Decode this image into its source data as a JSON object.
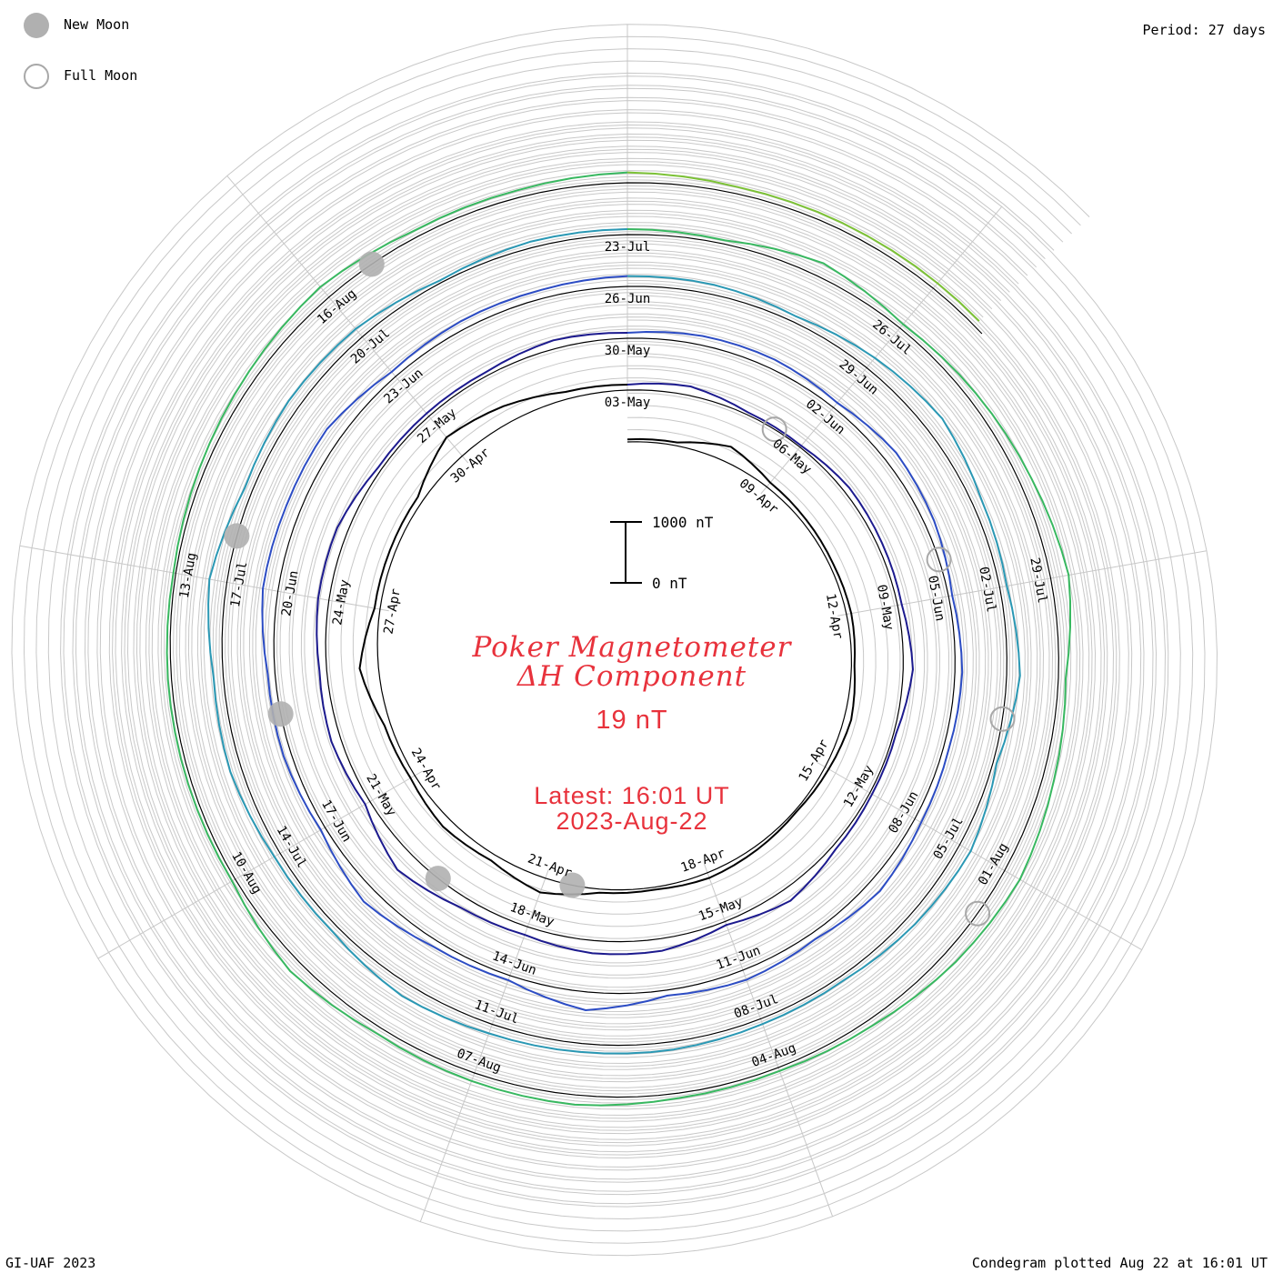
{
  "legend": {
    "new_moon_label": "New Moon",
    "full_moon_label": "Full Moon",
    "new_moon_color": "#b0b0b0",
    "full_moon_color": "#a8a8a8"
  },
  "period_label": "Period: 27 days",
  "footer_left": "GI-UAF 2023",
  "footer_right": "Condegram plotted Aug 22 at 16:01 UT",
  "title": {
    "line1": "Poker Magnetometer",
    "line2": "ΔH Component",
    "value": "19 nT",
    "latest_line1": "Latest: 16:01 UT",
    "latest_line2": "2023-Aug-22",
    "color": "#e8323c"
  },
  "chart_data": {
    "type": "line",
    "subtype": "spiral condegram",
    "period_days": 27,
    "start_date": "2023-04-06",
    "end_date": "2023-08-22",
    "scale_bar": {
      "top_label": "1000 nT",
      "bottom_label": "0 nT",
      "top_value": 1000,
      "bottom_value": 0
    },
    "grid": true,
    "date_labels": [
      "09-Apr",
      "12-Apr",
      "15-Apr",
      "18-Apr",
      "21-Apr",
      "24-Apr",
      "27-Apr",
      "30-Apr",
      "03-May",
      "06-May",
      "09-May",
      "12-May",
      "15-May",
      "18-May",
      "21-May",
      "24-May",
      "27-May",
      "30-May",
      "02-Jun",
      "05-Jun",
      "08-Jun",
      "11-Jun",
      "14-Jun",
      "17-Jun",
      "20-Jun",
      "23-Jun",
      "26-Jun",
      "29-Jun",
      "02-Jul",
      "05-Jul",
      "08-Jul",
      "11-Jul",
      "14-Jul",
      "17-Jul",
      "20-Jul",
      "23-Jul",
      "26-Jul",
      "29-Jul",
      "01-Aug",
      "04-Aug",
      "07-Aug",
      "10-Aug",
      "13-Aug",
      "16-Aug"
    ],
    "new_moon_dates": [
      "2023-04-20",
      "2023-05-19",
      "2023-06-18",
      "2023-07-17",
      "2023-08-16"
    ],
    "full_moon_dates": [
      "2023-05-05",
      "2023-06-04",
      "2023-07-03",
      "2023-08-01"
    ],
    "revolution_colors": [
      "#000000",
      "#1c1a8e",
      "#2c4cc4",
      "#2a98b4",
      "#38b860",
      "#7cc236",
      "#b8b420",
      "#c47a14",
      "#c41a12"
    ],
    "series": [
      {
        "step_days": 1,
        "values": [
          40,
          55,
          260,
          90,
          70,
          60,
          80,
          50,
          120,
          70,
          30,
          60,
          90,
          40,
          60,
          250,
          110,
          160,
          80,
          100,
          310,
          90,
          90,
          100,
          400,
          280,
          120,
          90,
          150,
          40,
          30,
          100,
          80,
          70,
          160,
          40,
          40,
          70,
          210,
          60,
          200,
          210,
          140,
          180,
          340,
          90,
          160,
          120,
          180,
          180,
          60,
          60,
          60,
          140,
          90,
          150,
          160,
          100,
          210,
          160,
          60,
          120,
          90,
          120,
          220,
          110,
          170,
          90,
          300,
          80,
          110,
          250,
          80,
          130,
          120,
          250,
          240,
          260,
          100,
          140,
          140,
          170,
          160,
          100,
          210,
          300,
          160,
          120,
          220,
          60,
          210,
          160,
          80,
          90,
          130,
          140,
          160,
          220,
          110,
          110,
          190,
          160,
          290,
          130,
          190,
          170,
          40,
          100,
          90,
          60,
          230,
          80,
          140,
          200,
          300,
          120,
          190,
          290,
          220,
          110,
          60,
          80,
          160,
          140,
          110,
          210,
          60,
          60,
          60,
          40,
          90,
          150,
          220,
          110,
          120,
          170,
          110
        ]
      }
    ]
  }
}
